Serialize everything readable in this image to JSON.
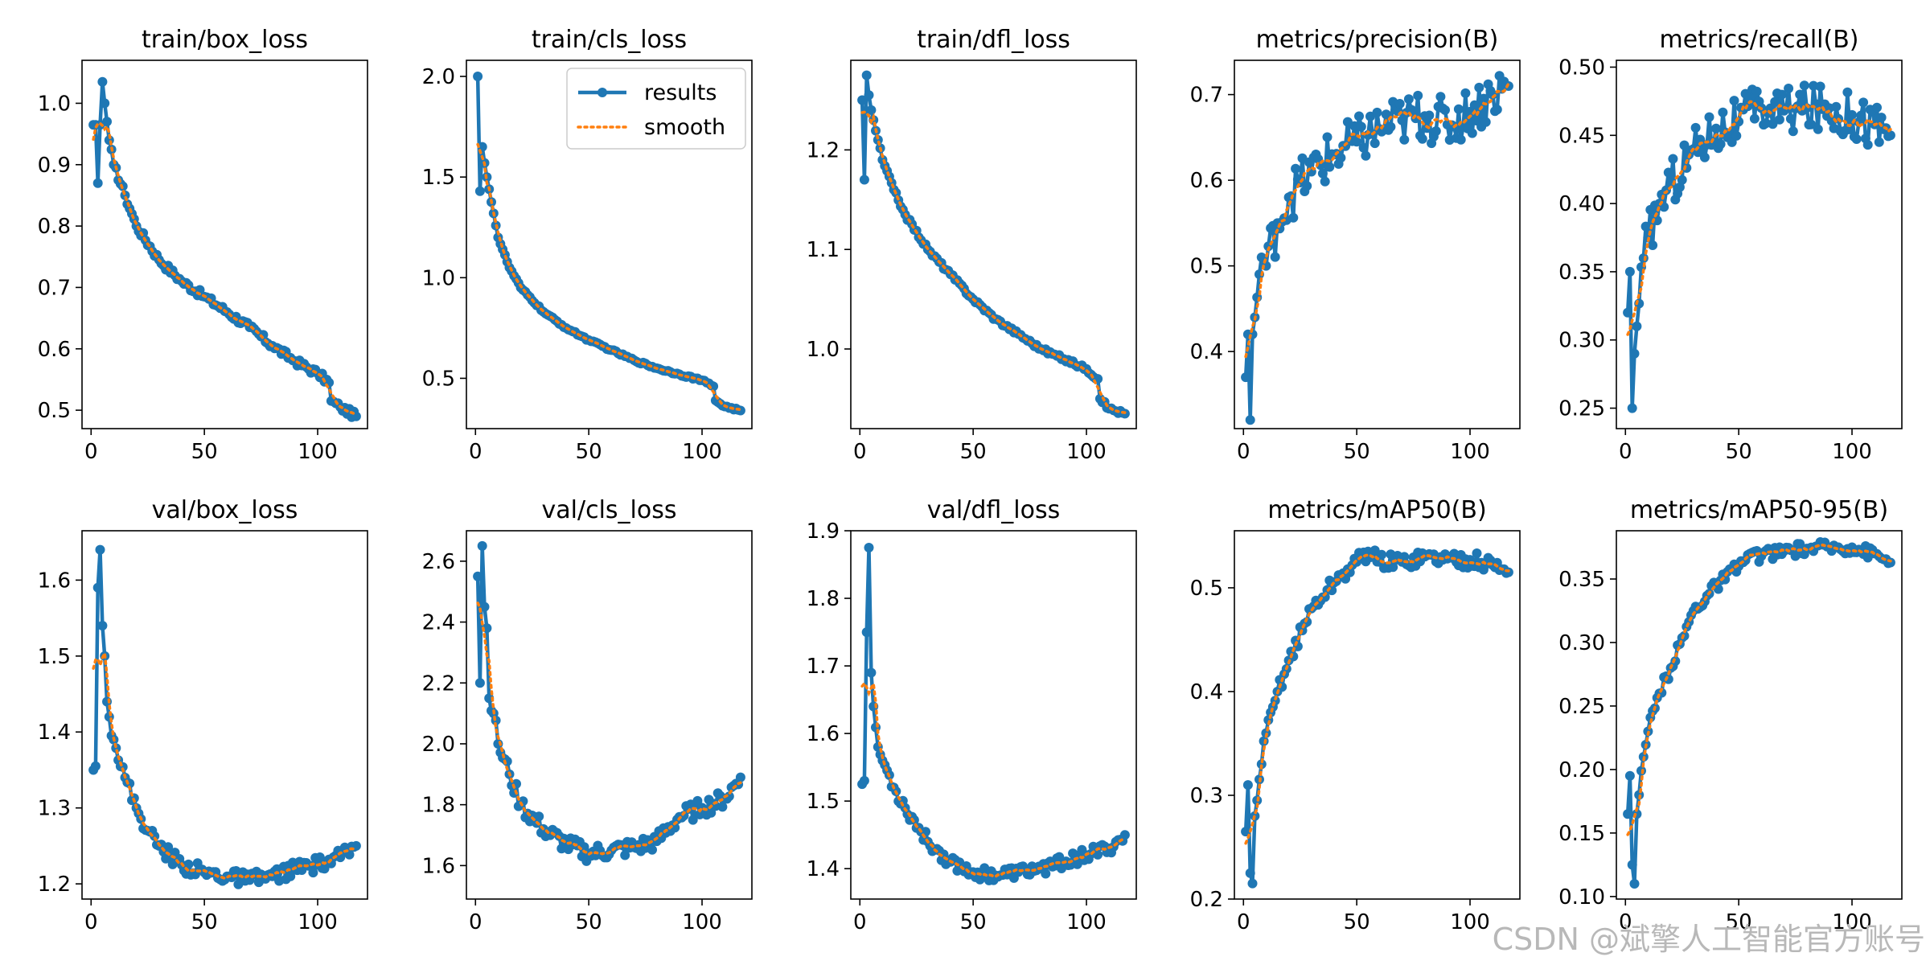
{
  "watermark": "CSDN @斌擎人工智能官方账号",
  "legend": {
    "results": "results",
    "smooth": "smooth"
  },
  "colors": {
    "results": "#1f77b4",
    "smooth": "#ff7f0e",
    "axis": "#000000",
    "background": "#ffffff"
  },
  "chart_data": [
    {
      "type": "line",
      "title": "train/box_loss",
      "xlim": [
        -4,
        122
      ],
      "ylim": [
        0.47,
        1.07
      ],
      "xticks": [
        0,
        50,
        100
      ],
      "yticks": [
        0.5,
        0.6,
        0.7,
        0.8,
        0.9,
        1.0
      ],
      "xtick_labels": [
        "0",
        "50",
        "100"
      ],
      "ytick_labels": [
        "0.5",
        "0.6",
        "0.7",
        "0.8",
        "0.9",
        "1.0"
      ],
      "x_end": 117,
      "anchors": [
        [
          1,
          0.965
        ],
        [
          2,
          0.965
        ],
        [
          3,
          0.87
        ],
        [
          4,
          0.965
        ],
        [
          5,
          1.035
        ],
        [
          6,
          1.0
        ],
        [
          7,
          0.97
        ],
        [
          8,
          0.94
        ],
        [
          10,
          0.9
        ],
        [
          15,
          0.85
        ],
        [
          20,
          0.8
        ],
        [
          30,
          0.745
        ],
        [
          40,
          0.71
        ],
        [
          50,
          0.685
        ],
        [
          60,
          0.66
        ],
        [
          70,
          0.635
        ],
        [
          80,
          0.605
        ],
        [
          90,
          0.58
        ],
        [
          100,
          0.56
        ],
        [
          105,
          0.545
        ],
        [
          106,
          0.515
        ],
        [
          110,
          0.505
        ],
        [
          117,
          0.49
        ]
      ],
      "noise": 0.006,
      "smooth_window": 7
    },
    {
      "type": "line",
      "title": "train/cls_loss",
      "xlim": [
        -4,
        122
      ],
      "ylim": [
        0.25,
        2.08
      ],
      "xticks": [
        0,
        50,
        100
      ],
      "yticks": [
        0.5,
        1.0,
        1.5,
        2.0
      ],
      "xtick_labels": [
        "0",
        "50",
        "100"
      ],
      "ytick_labels": [
        "0.5",
        "1.0",
        "1.5",
        "2.0"
      ],
      "x_end": 117,
      "legend": "top-right",
      "anchors": [
        [
          1,
          2.0
        ],
        [
          2,
          1.43
        ],
        [
          3,
          1.65
        ],
        [
          4,
          1.57
        ],
        [
          5,
          1.5
        ],
        [
          8,
          1.32
        ],
        [
          10,
          1.2
        ],
        [
          15,
          1.05
        ],
        [
          20,
          0.95
        ],
        [
          30,
          0.83
        ],
        [
          40,
          0.75
        ],
        [
          50,
          0.69
        ],
        [
          60,
          0.64
        ],
        [
          70,
          0.59
        ],
        [
          80,
          0.55
        ],
        [
          90,
          0.52
        ],
        [
          100,
          0.49
        ],
        [
          105,
          0.46
        ],
        [
          106,
          0.39
        ],
        [
          110,
          0.36
        ],
        [
          117,
          0.34
        ]
      ],
      "noise": 0.005,
      "smooth_window": 7
    },
    {
      "type": "line",
      "title": "train/dfl_loss",
      "xlim": [
        -4,
        122
      ],
      "ylim": [
        0.92,
        1.29
      ],
      "xticks": [
        0,
        50,
        100
      ],
      "yticks": [
        1.0,
        1.1,
        1.2
      ],
      "xtick_labels": [
        "0",
        "50",
        "100"
      ],
      "ytick_labels": [
        "1.0",
        "1.1",
        "1.2"
      ],
      "x_end": 117,
      "anchors": [
        [
          1,
          1.25
        ],
        [
          2,
          1.17
        ],
        [
          3,
          1.275
        ],
        [
          4,
          1.255
        ],
        [
          5,
          1.24
        ],
        [
          8,
          1.21
        ],
        [
          10,
          1.19
        ],
        [
          15,
          1.16
        ],
        [
          20,
          1.135
        ],
        [
          30,
          1.1
        ],
        [
          40,
          1.075
        ],
        [
          50,
          1.05
        ],
        [
          60,
          1.03
        ],
        [
          70,
          1.015
        ],
        [
          80,
          1.0
        ],
        [
          90,
          0.99
        ],
        [
          100,
          0.98
        ],
        [
          105,
          0.97
        ],
        [
          106,
          0.95
        ],
        [
          110,
          0.94
        ],
        [
          117,
          0.935
        ]
      ],
      "noise": 0.002,
      "smooth_window": 7
    },
    {
      "type": "line",
      "title": "metrics/precision(B)",
      "xlim": [
        -4,
        122
      ],
      "ylim": [
        0.31,
        0.74
      ],
      "xticks": [
        0,
        50,
        100
      ],
      "yticks": [
        0.4,
        0.5,
        0.6,
        0.7
      ],
      "xtick_labels": [
        "0",
        "50",
        "100"
      ],
      "ytick_labels": [
        "0.4",
        "0.5",
        "0.6",
        "0.7"
      ],
      "x_end": 117,
      "anchors": [
        [
          1,
          0.37
        ],
        [
          2,
          0.42
        ],
        [
          3,
          0.32
        ],
        [
          4,
          0.42
        ],
        [
          5,
          0.44
        ],
        [
          8,
          0.51
        ],
        [
          10,
          0.5
        ],
        [
          15,
          0.55
        ],
        [
          20,
          0.58
        ],
        [
          30,
          0.61
        ],
        [
          40,
          0.63
        ],
        [
          50,
          0.645
        ],
        [
          60,
          0.66
        ],
        [
          70,
          0.67
        ],
        [
          80,
          0.675
        ],
        [
          90,
          0.665
        ],
        [
          100,
          0.68
        ],
        [
          110,
          0.7
        ],
        [
          117,
          0.71
        ]
      ],
      "noise": 0.03,
      "smooth_window": 9
    },
    {
      "type": "line",
      "title": "metrics/recall(B)",
      "xlim": [
        -4,
        122
      ],
      "ylim": [
        0.235,
        0.505
      ],
      "xticks": [
        0,
        50,
        100
      ],
      "yticks": [
        0.25,
        0.3,
        0.35,
        0.4,
        0.45,
        0.5
      ],
      "xtick_labels": [
        "0",
        "50",
        "100"
      ],
      "ytick_labels": [
        "0.25",
        "0.30",
        "0.35",
        "0.40",
        "0.45",
        "0.50"
      ],
      "x_end": 117,
      "anchors": [
        [
          1,
          0.32
        ],
        [
          2,
          0.35
        ],
        [
          3,
          0.25
        ],
        [
          4,
          0.29
        ],
        [
          5,
          0.31
        ],
        [
          8,
          0.36
        ],
        [
          10,
          0.375
        ],
        [
          15,
          0.4
        ],
        [
          20,
          0.415
        ],
        [
          30,
          0.44
        ],
        [
          40,
          0.455
        ],
        [
          50,
          0.46
        ],
        [
          60,
          0.47
        ],
        [
          70,
          0.468
        ],
        [
          80,
          0.47
        ],
        [
          90,
          0.47
        ],
        [
          100,
          0.465
        ],
        [
          110,
          0.458
        ],
        [
          117,
          0.45
        ]
      ],
      "noise": 0.018,
      "smooth_window": 9
    },
    {
      "type": "line",
      "title": "val/box_loss",
      "xlim": [
        -4,
        122
      ],
      "ylim": [
        1.18,
        1.665
      ],
      "xticks": [
        0,
        50,
        100
      ],
      "yticks": [
        1.2,
        1.3,
        1.4,
        1.5,
        1.6
      ],
      "xtick_labels": [
        "0",
        "50",
        "100"
      ],
      "ytick_labels": [
        "1.2",
        "1.3",
        "1.4",
        "1.5",
        "1.6"
      ],
      "x_end": 117,
      "anchors": [
        [
          1,
          1.35
        ],
        [
          2,
          1.355
        ],
        [
          3,
          1.59
        ],
        [
          4,
          1.64
        ],
        [
          5,
          1.54
        ],
        [
          6,
          1.5
        ],
        [
          7,
          1.44
        ],
        [
          8,
          1.42
        ],
        [
          10,
          1.39
        ],
        [
          15,
          1.34
        ],
        [
          20,
          1.3
        ],
        [
          25,
          1.27
        ],
        [
          30,
          1.25
        ],
        [
          40,
          1.225
        ],
        [
          50,
          1.215
        ],
        [
          60,
          1.21
        ],
        [
          70,
          1.205
        ],
        [
          80,
          1.21
        ],
        [
          90,
          1.22
        ],
        [
          100,
          1.225
        ],
        [
          110,
          1.235
        ],
        [
          117,
          1.25
        ]
      ],
      "noise": 0.01,
      "smooth_window": 7
    },
    {
      "type": "line",
      "title": "val/cls_loss",
      "xlim": [
        -4,
        122
      ],
      "ylim": [
        1.49,
        2.7
      ],
      "xticks": [
        0,
        50,
        100
      ],
      "yticks": [
        1.6,
        1.8,
        2.0,
        2.2,
        2.4,
        2.6
      ],
      "xtick_labels": [
        "0",
        "50",
        "100"
      ],
      "ytick_labels": [
        "1.6",
        "1.8",
        "2.0",
        "2.2",
        "2.4",
        "2.6"
      ],
      "x_end": 117,
      "anchors": [
        [
          1,
          2.55
        ],
        [
          2,
          2.2
        ],
        [
          3,
          2.65
        ],
        [
          4,
          2.45
        ],
        [
          5,
          2.38
        ],
        [
          6,
          2.15
        ],
        [
          8,
          2.1
        ],
        [
          10,
          2.0
        ],
        [
          15,
          1.9
        ],
        [
          20,
          1.8
        ],
        [
          30,
          1.72
        ],
        [
          40,
          1.67
        ],
        [
          50,
          1.64
        ],
        [
          60,
          1.65
        ],
        [
          70,
          1.66
        ],
        [
          80,
          1.68
        ],
        [
          90,
          1.76
        ],
        [
          100,
          1.79
        ],
        [
          110,
          1.82
        ],
        [
          117,
          1.89
        ]
      ],
      "noise": 0.03,
      "smooth_window": 7
    },
    {
      "type": "line",
      "title": "val/dfl_loss",
      "xlim": [
        -4,
        122
      ],
      "ylim": [
        1.355,
        1.9
      ],
      "xticks": [
        0,
        50,
        100
      ],
      "yticks": [
        1.4,
        1.5,
        1.6,
        1.7,
        1.8,
        1.9
      ],
      "xtick_labels": [
        "0",
        "50",
        "100"
      ],
      "ytick_labels": [
        "1.4",
        "1.5",
        "1.6",
        "1.7",
        "1.8",
        "1.9"
      ],
      "x_end": 117,
      "anchors": [
        [
          1,
          1.525
        ],
        [
          2,
          1.53
        ],
        [
          3,
          1.75
        ],
        [
          4,
          1.875
        ],
        [
          5,
          1.69
        ],
        [
          6,
          1.64
        ],
        [
          8,
          1.58
        ],
        [
          10,
          1.56
        ],
        [
          15,
          1.52
        ],
        [
          20,
          1.49
        ],
        [
          30,
          1.44
        ],
        [
          40,
          1.41
        ],
        [
          50,
          1.395
        ],
        [
          60,
          1.39
        ],
        [
          70,
          1.395
        ],
        [
          80,
          1.4
        ],
        [
          90,
          1.41
        ],
        [
          100,
          1.42
        ],
        [
          110,
          1.43
        ],
        [
          117,
          1.45
        ]
      ],
      "noise": 0.01,
      "smooth_window": 7
    },
    {
      "type": "line",
      "title": "metrics/mAP50(B)",
      "xlim": [
        -4,
        122
      ],
      "ylim": [
        0.2,
        0.555
      ],
      "xticks": [
        0,
        50,
        100
      ],
      "yticks": [
        0.2,
        0.3,
        0.4,
        0.5
      ],
      "xtick_labels": [
        "0",
        "50",
        "100"
      ],
      "ytick_labels": [
        "0.2",
        "0.3",
        "0.4",
        "0.5"
      ],
      "x_end": 117,
      "anchors": [
        [
          1,
          0.265
        ],
        [
          2,
          0.31
        ],
        [
          3,
          0.225
        ],
        [
          4,
          0.215
        ],
        [
          5,
          0.28
        ],
        [
          6,
          0.295
        ],
        [
          8,
          0.33
        ],
        [
          10,
          0.36
        ],
        [
          15,
          0.4
        ],
        [
          20,
          0.43
        ],
        [
          30,
          0.48
        ],
        [
          40,
          0.505
        ],
        [
          50,
          0.525
        ],
        [
          55,
          0.535
        ],
        [
          60,
          0.525
        ],
        [
          70,
          0.525
        ],
        [
          80,
          0.53
        ],
        [
          90,
          0.528
        ],
        [
          100,
          0.527
        ],
        [
          110,
          0.522
        ],
        [
          117,
          0.515
        ]
      ],
      "noise": 0.008,
      "smooth_window": 7
    },
    {
      "type": "line",
      "title": "metrics/mAP50-95(B)",
      "xlim": [
        -4,
        122
      ],
      "ylim": [
        0.098,
        0.388
      ],
      "xticks": [
        0,
        50,
        100
      ],
      "yticks": [
        0.1,
        0.15,
        0.2,
        0.25,
        0.3,
        0.35
      ],
      "xtick_labels": [
        "0",
        "50",
        "100"
      ],
      "ytick_labels": [
        "0.10",
        "0.15",
        "0.20",
        "0.25",
        "0.30",
        "0.35"
      ],
      "x_end": 117,
      "anchors": [
        [
          1,
          0.165
        ],
        [
          2,
          0.195
        ],
        [
          3,
          0.125
        ],
        [
          4,
          0.11
        ],
        [
          5,
          0.165
        ],
        [
          6,
          0.18
        ],
        [
          8,
          0.21
        ],
        [
          10,
          0.23
        ],
        [
          15,
          0.26
        ],
        [
          20,
          0.28
        ],
        [
          30,
          0.325
        ],
        [
          40,
          0.345
        ],
        [
          50,
          0.36
        ],
        [
          55,
          0.37
        ],
        [
          60,
          0.368
        ],
        [
          70,
          0.372
        ],
        [
          80,
          0.374
        ],
        [
          90,
          0.375
        ],
        [
          100,
          0.375
        ],
        [
          110,
          0.37
        ],
        [
          117,
          0.363
        ]
      ],
      "noise": 0.005,
      "smooth_window": 7
    }
  ]
}
